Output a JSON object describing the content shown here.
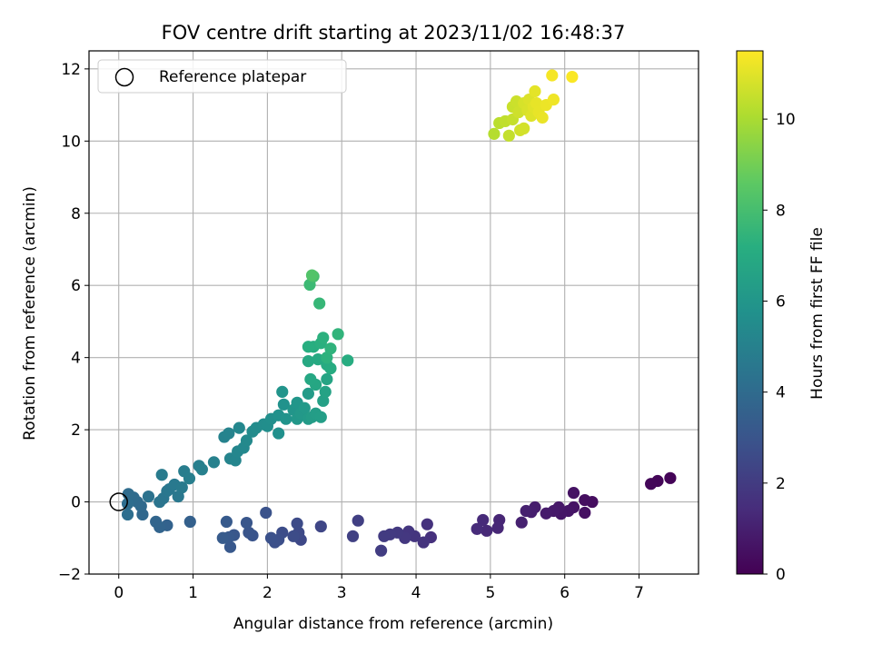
{
  "chart_data": {
    "type": "scatter",
    "title": "FOV centre drift starting at 2023/11/02 16:48:37",
    "xlabel": "Angular distance from reference (arcmin)",
    "ylabel": "Rotation from reference (arcmin)",
    "xlim": [
      -0.4,
      7.8
    ],
    "ylim": [
      -2.0,
      12.5
    ],
    "xticks": [
      "0",
      "1",
      "2",
      "3",
      "4",
      "5",
      "6",
      "7"
    ],
    "yticks": [
      "−2",
      "0",
      "2",
      "4",
      "6",
      "8",
      "10",
      "12"
    ],
    "grid": true,
    "legend": {
      "placement": "top-left",
      "entries": [
        "Reference platepar"
      ]
    },
    "reference_point": {
      "x": 0,
      "y": 0
    },
    "colorbar": {
      "label": "Hours from first FF file",
      "colormap": "viridis",
      "range": [
        0,
        11.5
      ],
      "ticks": [
        "0",
        "2",
        "4",
        "6",
        "8",
        "10"
      ]
    },
    "series": [
      {
        "points": [
          {
            "x": 7.42,
            "y": 0.66,
            "c": 0.1
          },
          {
            "x": 7.25,
            "y": 0.58,
            "c": 0.15
          },
          {
            "x": 7.16,
            "y": 0.5,
            "c": 0.2
          },
          {
            "x": 6.37,
            "y": 0.0,
            "c": 0.4
          },
          {
            "x": 6.27,
            "y": 0.05,
            "c": 0.45
          },
          {
            "x": 6.27,
            "y": -0.3,
            "c": 0.5
          },
          {
            "x": 6.12,
            "y": 0.25,
            "c": 0.55
          },
          {
            "x": 6.12,
            "y": -0.15,
            "c": 0.6
          },
          {
            "x": 6.05,
            "y": -0.25,
            "c": 0.65
          },
          {
            "x": 5.95,
            "y": -0.33,
            "c": 0.7
          },
          {
            "x": 5.92,
            "y": -0.15,
            "c": 0.75
          },
          {
            "x": 5.85,
            "y": -0.25,
            "c": 0.8
          },
          {
            "x": 5.75,
            "y": -0.32,
            "c": 0.85
          },
          {
            "x": 5.6,
            "y": -0.15,
            "c": 0.9
          },
          {
            "x": 5.55,
            "y": -0.28,
            "c": 0.95
          },
          {
            "x": 5.48,
            "y": -0.25,
            "c": 1.0
          },
          {
            "x": 5.42,
            "y": -0.57,
            "c": 1.05
          },
          {
            "x": 5.12,
            "y": -0.5,
            "c": 1.2
          },
          {
            "x": 5.1,
            "y": -0.72,
            "c": 1.25
          },
          {
            "x": 4.95,
            "y": -0.8,
            "c": 1.3
          },
          {
            "x": 4.9,
            "y": -0.5,
            "c": 1.35
          },
          {
            "x": 4.82,
            "y": -0.75,
            "c": 1.4
          },
          {
            "x": 4.2,
            "y": -0.98,
            "c": 1.6
          },
          {
            "x": 4.15,
            "y": -0.62,
            "c": 1.65
          },
          {
            "x": 4.1,
            "y": -1.12,
            "c": 1.7
          },
          {
            "x": 3.98,
            "y": -0.95,
            "c": 1.75
          },
          {
            "x": 3.9,
            "y": -0.82,
            "c": 1.8
          },
          {
            "x": 3.85,
            "y": -1.0,
            "c": 1.85
          },
          {
            "x": 3.75,
            "y": -0.85,
            "c": 1.9
          },
          {
            "x": 3.65,
            "y": -0.9,
            "c": 1.95
          },
          {
            "x": 3.57,
            "y": -0.95,
            "c": 2.0
          },
          {
            "x": 3.53,
            "y": -1.35,
            "c": 2.05
          },
          {
            "x": 3.22,
            "y": -0.52,
            "c": 2.15
          },
          {
            "x": 3.15,
            "y": -0.95,
            "c": 2.2
          },
          {
            "x": 2.72,
            "y": -0.68,
            "c": 2.4
          },
          {
            "x": 2.45,
            "y": -1.05,
            "c": 2.5
          },
          {
            "x": 2.42,
            "y": -0.85,
            "c": 2.55
          },
          {
            "x": 2.4,
            "y": -0.6,
            "c": 2.6
          },
          {
            "x": 2.35,
            "y": -0.95,
            "c": 2.65
          },
          {
            "x": 2.2,
            "y": -0.85,
            "c": 2.7
          },
          {
            "x": 2.15,
            "y": -1.05,
            "c": 2.75
          },
          {
            "x": 2.1,
            "y": -1.12,
            "c": 2.8
          },
          {
            "x": 2.05,
            "y": -1.0,
            "c": 2.85
          },
          {
            "x": 1.98,
            "y": -0.3,
            "c": 2.9
          },
          {
            "x": 1.8,
            "y": -0.93,
            "c": 2.95
          },
          {
            "x": 1.75,
            "y": -0.85,
            "c": 3.0
          },
          {
            "x": 1.72,
            "y": -0.58,
            "c": 3.05
          },
          {
            "x": 1.55,
            "y": -0.92,
            "c": 3.1
          },
          {
            "x": 1.5,
            "y": -1.25,
            "c": 3.15
          },
          {
            "x": 1.48,
            "y": -0.98,
            "c": 3.2
          },
          {
            "x": 1.45,
            "y": -0.55,
            "c": 3.25
          },
          {
            "x": 1.4,
            "y": -1.0,
            "c": 3.3
          },
          {
            "x": 0.96,
            "y": -0.55,
            "c": 3.5
          },
          {
            "x": 0.65,
            "y": -0.65,
            "c": 3.6
          },
          {
            "x": 0.55,
            "y": -0.7,
            "c": 3.7
          },
          {
            "x": 0.5,
            "y": -0.55,
            "c": 3.75
          },
          {
            "x": 0.32,
            "y": -0.35,
            "c": 3.85
          },
          {
            "x": 0.3,
            "y": -0.12,
            "c": 3.9
          },
          {
            "x": 0.25,
            "y": 0.0,
            "c": 3.95
          },
          {
            "x": 0.2,
            "y": 0.12,
            "c": 4.0
          },
          {
            "x": 0.13,
            "y": 0.22,
            "c": 4.05
          },
          {
            "x": 0.12,
            "y": -0.05,
            "c": 4.1
          },
          {
            "x": 0.12,
            "y": -0.35,
            "c": 4.15
          },
          {
            "x": 0.4,
            "y": 0.15,
            "c": 4.3
          },
          {
            "x": 0.55,
            "y": 0.0,
            "c": 4.4
          },
          {
            "x": 0.6,
            "y": 0.1,
            "c": 4.45
          },
          {
            "x": 0.65,
            "y": 0.3,
            "c": 4.5
          },
          {
            "x": 0.68,
            "y": 0.35,
            "c": 4.55
          },
          {
            "x": 0.8,
            "y": 0.15,
            "c": 4.6
          },
          {
            "x": 0.75,
            "y": 0.48,
            "c": 4.65
          },
          {
            "x": 0.85,
            "y": 0.4,
            "c": 4.7
          },
          {
            "x": 0.58,
            "y": 0.75,
            "c": 4.75
          },
          {
            "x": 0.88,
            "y": 0.85,
            "c": 4.8
          },
          {
            "x": 0.95,
            "y": 0.65,
            "c": 4.85
          },
          {
            "x": 1.08,
            "y": 1.0,
            "c": 4.9
          },
          {
            "x": 1.12,
            "y": 0.9,
            "c": 4.95
          },
          {
            "x": 1.28,
            "y": 1.1,
            "c": 5.0
          },
          {
            "x": 1.42,
            "y": 1.8,
            "c": 5.05
          },
          {
            "x": 1.48,
            "y": 1.9,
            "c": 5.1
          },
          {
            "x": 1.5,
            "y": 1.2,
            "c": 5.15
          },
          {
            "x": 1.57,
            "y": 1.15,
            "c": 5.2
          },
          {
            "x": 1.6,
            "y": 1.4,
            "c": 5.25
          },
          {
            "x": 1.62,
            "y": 2.05,
            "c": 5.3
          },
          {
            "x": 1.68,
            "y": 1.5,
            "c": 5.35
          },
          {
            "x": 1.72,
            "y": 1.7,
            "c": 5.4
          },
          {
            "x": 1.8,
            "y": 1.95,
            "c": 5.45
          },
          {
            "x": 1.85,
            "y": 2.05,
            "c": 5.5
          },
          {
            "x": 1.95,
            "y": 2.15,
            "c": 5.55
          },
          {
            "x": 2.0,
            "y": 2.1,
            "c": 5.6
          },
          {
            "x": 2.05,
            "y": 2.3,
            "c": 5.65
          },
          {
            "x": 2.15,
            "y": 1.9,
            "c": 5.7
          },
          {
            "x": 2.15,
            "y": 2.4,
            "c": 5.75
          },
          {
            "x": 2.22,
            "y": 2.7,
            "c": 5.8
          },
          {
            "x": 2.25,
            "y": 2.3,
            "c": 5.85
          },
          {
            "x": 2.2,
            "y": 3.05,
            "c": 5.9
          },
          {
            "x": 2.35,
            "y": 2.55,
            "c": 5.95
          },
          {
            "x": 2.4,
            "y": 2.75,
            "c": 6.0
          },
          {
            "x": 2.4,
            "y": 2.3,
            "c": 6.05
          },
          {
            "x": 2.45,
            "y": 2.45,
            "c": 6.1
          },
          {
            "x": 2.5,
            "y": 2.6,
            "c": 6.15
          },
          {
            "x": 2.55,
            "y": 2.3,
            "c": 6.2
          },
          {
            "x": 2.55,
            "y": 3.0,
            "c": 6.25
          },
          {
            "x": 2.6,
            "y": 2.35,
            "c": 6.3
          },
          {
            "x": 2.65,
            "y": 2.45,
            "c": 6.35
          },
          {
            "x": 2.72,
            "y": 2.35,
            "c": 6.4
          },
          {
            "x": 2.75,
            "y": 2.8,
            "c": 6.5
          },
          {
            "x": 2.78,
            "y": 3.05,
            "c": 6.6
          },
          {
            "x": 2.8,
            "y": 3.4,
            "c": 6.7
          },
          {
            "x": 2.65,
            "y": 3.25,
            "c": 6.8
          },
          {
            "x": 2.58,
            "y": 3.4,
            "c": 6.85
          },
          {
            "x": 2.55,
            "y": 3.9,
            "c": 6.9
          },
          {
            "x": 2.68,
            "y": 3.95,
            "c": 6.95
          },
          {
            "x": 2.8,
            "y": 3.8,
            "c": 7.0
          },
          {
            "x": 2.85,
            "y": 3.7,
            "c": 7.05
          },
          {
            "x": 3.08,
            "y": 3.92,
            "c": 7.1
          },
          {
            "x": 2.62,
            "y": 4.3,
            "c": 7.15
          },
          {
            "x": 2.55,
            "y": 4.3,
            "c": 7.2
          },
          {
            "x": 2.72,
            "y": 4.4,
            "c": 7.25
          },
          {
            "x": 2.75,
            "y": 4.55,
            "c": 7.3
          },
          {
            "x": 2.8,
            "y": 4.0,
            "c": 7.35
          },
          {
            "x": 2.85,
            "y": 4.25,
            "c": 7.4
          },
          {
            "x": 2.95,
            "y": 4.65,
            "c": 7.45
          },
          {
            "x": 2.7,
            "y": 5.5,
            "c": 7.6
          },
          {
            "x": 2.57,
            "y": 6.02,
            "c": 7.75
          },
          {
            "x": 2.62,
            "y": 6.25,
            "c": 8.0
          },
          {
            "x": 2.6,
            "y": 6.28,
            "c": 8.3
          },
          {
            "x": 5.05,
            "y": 10.2,
            "c": 10.2
          },
          {
            "x": 5.12,
            "y": 10.5,
            "c": 10.3
          },
          {
            "x": 5.2,
            "y": 10.55,
            "c": 10.4
          },
          {
            "x": 5.25,
            "y": 10.15,
            "c": 10.45
          },
          {
            "x": 5.3,
            "y": 10.6,
            "c": 10.5
          },
          {
            "x": 5.3,
            "y": 10.95,
            "c": 10.55
          },
          {
            "x": 5.35,
            "y": 11.1,
            "c": 10.6
          },
          {
            "x": 5.38,
            "y": 10.8,
            "c": 10.65
          },
          {
            "x": 5.4,
            "y": 10.3,
            "c": 10.7
          },
          {
            "x": 5.45,
            "y": 10.35,
            "c": 10.75
          },
          {
            "x": 5.45,
            "y": 11.05,
            "c": 10.8
          },
          {
            "x": 5.5,
            "y": 10.85,
            "c": 10.85
          },
          {
            "x": 5.52,
            "y": 11.15,
            "c": 10.9
          },
          {
            "x": 5.55,
            "y": 10.7,
            "c": 10.95
          },
          {
            "x": 5.58,
            "y": 10.95,
            "c": 11.0
          },
          {
            "x": 5.6,
            "y": 11.38,
            "c": 11.05
          },
          {
            "x": 5.62,
            "y": 11.05,
            "c": 11.1
          },
          {
            "x": 5.65,
            "y": 10.8,
            "c": 11.12
          },
          {
            "x": 5.7,
            "y": 10.65,
            "c": 11.15
          },
          {
            "x": 5.75,
            "y": 11.0,
            "c": 11.2
          },
          {
            "x": 5.85,
            "y": 11.15,
            "c": 11.25
          },
          {
            "x": 5.83,
            "y": 11.82,
            "c": 11.35
          },
          {
            "x": 6.1,
            "y": 11.78,
            "c": 11.45
          }
        ]
      }
    ]
  }
}
